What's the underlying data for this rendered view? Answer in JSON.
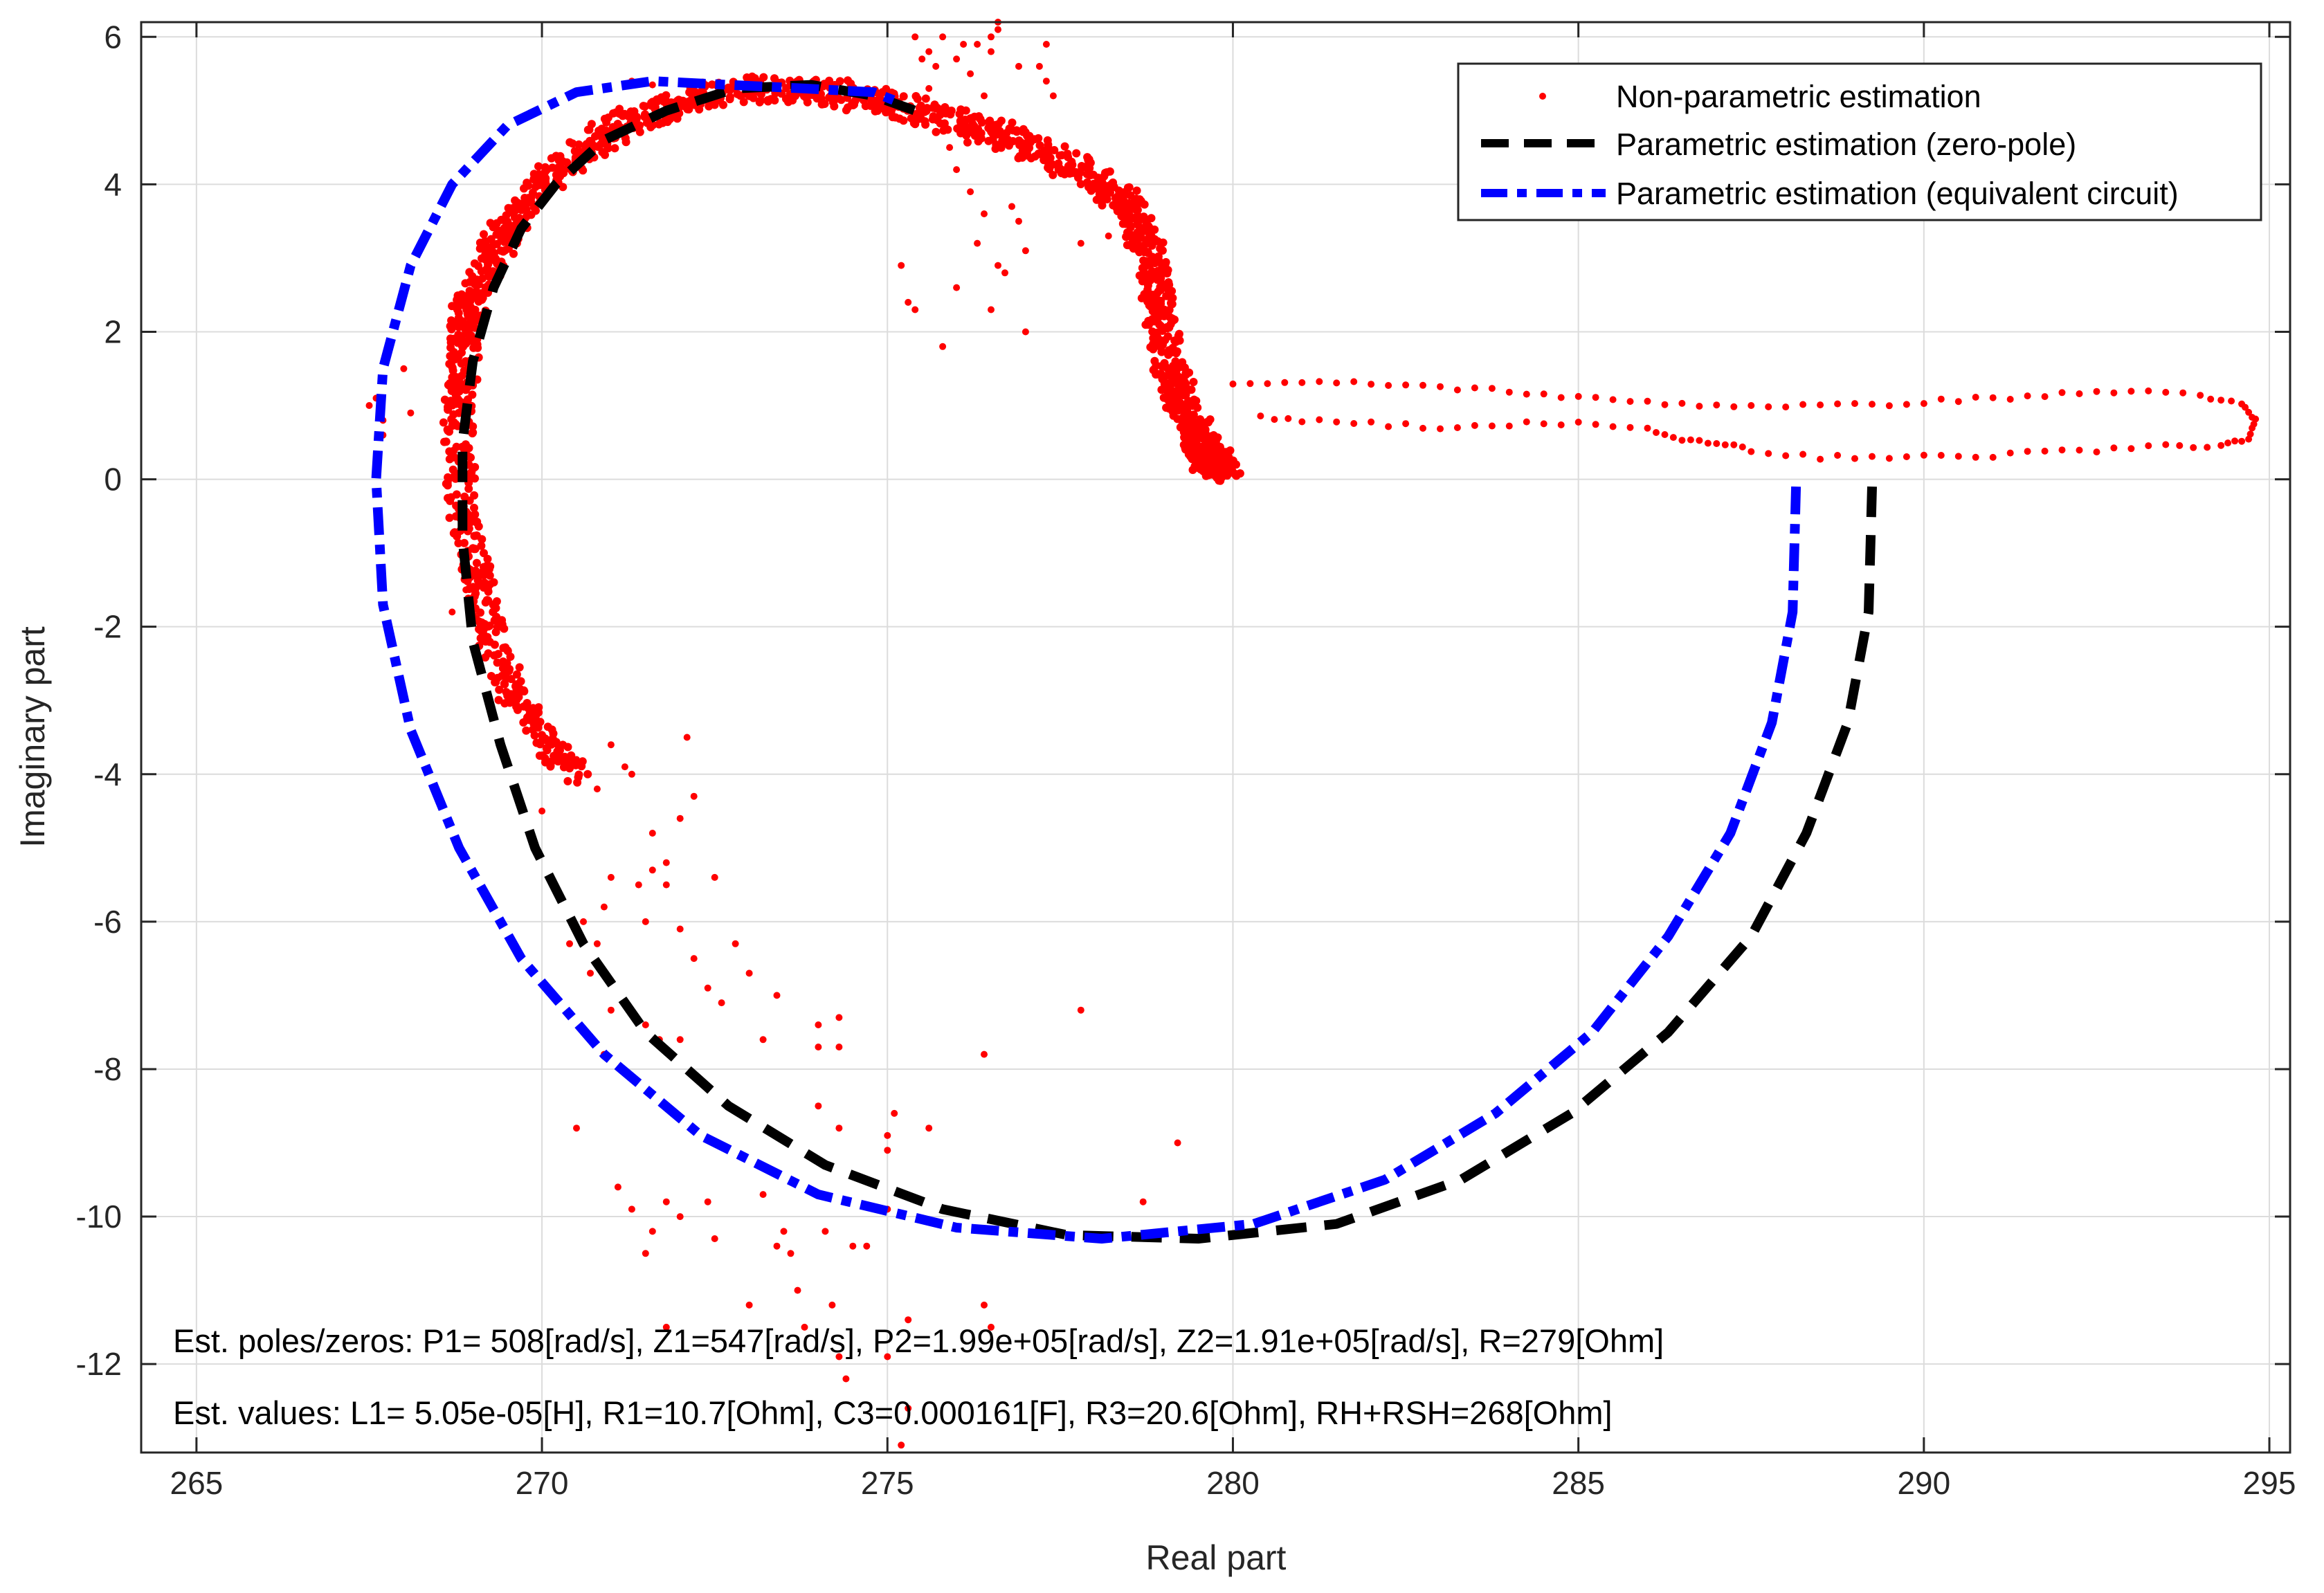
{
  "chart_data": {
    "type": "scatter",
    "title": "",
    "xlabel": "Real part",
    "ylabel": "Imaginary part",
    "xlim": [
      264.2,
      295.3
    ],
    "ylim": [
      -13.2,
      6.2
    ],
    "xticks": [
      265,
      270,
      275,
      280,
      285,
      290,
      295
    ],
    "yticks": [
      -12,
      -10,
      -8,
      -6,
      -4,
      -2,
      0,
      2,
      4,
      6
    ],
    "xtick_labels": [
      "265",
      "270",
      "275",
      "280",
      "285",
      "290",
      "295"
    ],
    "ytick_labels": [
      "-12",
      "-10",
      "-8",
      "-6",
      "-4",
      "-2",
      "0",
      "2",
      "4",
      "6"
    ],
    "grid": true,
    "legend_position": "top-right",
    "legend": [
      {
        "name": "Non-parametric estimation",
        "style": "dots",
        "color": "#ff0000"
      },
      {
        "name": "Parametric estimation (zero-pole)",
        "style": "dashed",
        "color": "#000000"
      },
      {
        "name": "Parametric estimation (equivalent circuit)",
        "style": "dash-dot",
        "color": "#0000ff"
      }
    ],
    "annotations": [
      "Est. poles/zeros: P1= 508[rad/s], Z1=547[rad/s], P2=1.99e+05[rad/s], Z2=1.91e+05[rad/s], R=279[Ohm]",
      "Est. values: L1= 5.05e-05[H], R1=10.7[Ohm], C3=0.000161[F], R3=20.6[Ohm], RH+RSH=268[Ohm]"
    ],
    "series": [
      {
        "name": "Non-parametric estimation",
        "color": "#ff0000",
        "dense_path": [
          [
            268.8,
            0.8
          ],
          [
            268.85,
            1.5
          ],
          [
            268.9,
            2.2
          ],
          [
            269.1,
            2.7
          ],
          [
            269.4,
            3.2
          ],
          [
            269.7,
            3.7
          ],
          [
            270.2,
            4.2
          ],
          [
            270.8,
            4.6
          ],
          [
            271.5,
            4.95
          ],
          [
            272.3,
            5.2
          ],
          [
            273.2,
            5.3
          ],
          [
            274.2,
            5.25
          ],
          [
            275.0,
            5.1
          ],
          [
            275.8,
            4.9
          ],
          [
            276.5,
            4.7
          ],
          [
            277.2,
            4.45
          ],
          [
            277.9,
            4.1
          ],
          [
            278.5,
            3.7
          ],
          [
            278.8,
            3.1
          ],
          [
            278.9,
            2.5
          ],
          [
            279.0,
            2.0
          ],
          [
            279.1,
            1.4
          ],
          [
            279.3,
            1.0
          ],
          [
            279.5,
            0.6
          ],
          [
            279.6,
            0.3
          ],
          [
            279.9,
            0.2
          ],
          [
            279.7,
            0.15
          ]
        ],
        "dense_path_lower": [
          [
            268.8,
            0.8
          ],
          [
            268.8,
            0.2
          ],
          [
            268.85,
            -0.4
          ],
          [
            269.0,
            -0.9
          ],
          [
            269.1,
            -1.4
          ],
          [
            269.2,
            -1.9
          ],
          [
            269.3,
            -2.4
          ],
          [
            269.6,
            -2.9
          ],
          [
            269.9,
            -3.3
          ],
          [
            270.2,
            -3.7
          ],
          [
            270.5,
            -4.0
          ]
        ],
        "tail": [
          [
            280.0,
            1.3
          ],
          [
            281.0,
            1.3
          ],
          [
            282.0,
            1.3
          ],
          [
            283.0,
            1.25
          ],
          [
            284.0,
            1.2
          ],
          [
            285.0,
            1.1
          ],
          [
            286.0,
            1.05
          ],
          [
            287.0,
            1.0
          ],
          [
            288.0,
            1.0
          ],
          [
            289.0,
            1.0
          ],
          [
            290.0,
            1.05
          ],
          [
            291.0,
            1.1
          ],
          [
            292.0,
            1.15
          ],
          [
            293.0,
            1.2
          ],
          [
            294.0,
            1.15
          ],
          [
            294.6,
            1.0
          ],
          [
            294.8,
            0.8
          ],
          [
            294.7,
            0.55
          ],
          [
            294.3,
            0.45
          ],
          [
            293.5,
            0.45
          ],
          [
            292.5,
            0.4
          ],
          [
            291.5,
            0.35
          ],
          [
            290.5,
            0.3
          ],
          [
            289.5,
            0.3
          ],
          [
            288.5,
            0.3
          ],
          [
            287.5,
            0.4
          ],
          [
            287.0,
            0.5
          ],
          [
            286.5,
            0.55
          ],
          [
            286.0,
            0.7
          ],
          [
            285.0,
            0.75
          ],
          [
            284.0,
            0.75
          ],
          [
            283.0,
            0.7
          ],
          [
            282.0,
            0.75
          ],
          [
            281.0,
            0.8
          ],
          [
            280.2,
            0.85
          ]
        ],
        "outliers": [
          [
            267.5,
            1.0
          ],
          [
            267.7,
            0.8
          ],
          [
            267.6,
            1.1
          ],
          [
            268.1,
            0.9
          ],
          [
            268.0,
            1.5
          ],
          [
            267.7,
            0.6
          ],
          [
            268.7,
            -1.8
          ],
          [
            268.9,
            -1.5
          ],
          [
            270.0,
            -4.5
          ],
          [
            270.5,
            -3.8
          ],
          [
            270.8,
            -4.2
          ],
          [
            271.0,
            -3.6
          ],
          [
            271.3,
            -4.0
          ],
          [
            271.2,
            -3.9
          ],
          [
            271.6,
            -4.8
          ],
          [
            271.6,
            -5.3
          ],
          [
            271.4,
            -5.5
          ],
          [
            271.0,
            -5.4
          ],
          [
            270.9,
            -5.8
          ],
          [
            270.6,
            -6.0
          ],
          [
            270.4,
            -6.3
          ],
          [
            270.8,
            -6.3
          ],
          [
            270.7,
            -6.7
          ],
          [
            271.5,
            -6.0
          ],
          [
            271.8,
            -5.2
          ],
          [
            271.8,
            -5.5
          ],
          [
            272.0,
            -4.6
          ],
          [
            272.1,
            -3.5
          ],
          [
            272.2,
            -4.3
          ],
          [
            272.0,
            -6.1
          ],
          [
            272.2,
            -6.5
          ],
          [
            272.4,
            -6.9
          ],
          [
            272.5,
            -5.4
          ],
          [
            272.8,
            -6.3
          ],
          [
            272.6,
            -7.1
          ],
          [
            271.0,
            -7.2
          ],
          [
            270.9,
            -7.8
          ],
          [
            271.5,
            -7.4
          ],
          [
            271.7,
            -7.6
          ],
          [
            272.0,
            -7.6
          ],
          [
            273.2,
            -7.6
          ],
          [
            273.0,
            -6.7
          ],
          [
            273.4,
            -7.0
          ],
          [
            274.0,
            -7.4
          ],
          [
            274.0,
            -7.7
          ],
          [
            274.3,
            -7.3
          ],
          [
            274.3,
            -7.7
          ],
          [
            274.0,
            -8.5
          ],
          [
            274.3,
            -8.8
          ],
          [
            275.0,
            -8.9
          ],
          [
            275.0,
            -9.1
          ],
          [
            275.6,
            -8.8
          ],
          [
            275.1,
            -8.6
          ],
          [
            276.4,
            -7.8
          ],
          [
            277.8,
            -7.2
          ],
          [
            279.2,
            -9.0
          ],
          [
            278.7,
            -9.8
          ],
          [
            270.5,
            -8.8
          ],
          [
            271.1,
            -9.6
          ],
          [
            271.3,
            -9.9
          ],
          [
            271.6,
            -10.2
          ],
          [
            271.8,
            -9.8
          ],
          [
            271.5,
            -10.5
          ],
          [
            272.0,
            -10.0
          ],
          [
            272.4,
            -9.8
          ],
          [
            272.5,
            -10.3
          ],
          [
            273.2,
            -9.7
          ],
          [
            273.4,
            -10.4
          ],
          [
            273.5,
            -10.2
          ],
          [
            273.6,
            -10.5
          ],
          [
            274.1,
            -10.2
          ],
          [
            273.7,
            -11.0
          ],
          [
            273.8,
            -11.5
          ],
          [
            274.2,
            -11.2
          ],
          [
            274.5,
            -10.4
          ],
          [
            274.7,
            -10.4
          ],
          [
            274.3,
            -11.9
          ],
          [
            274.4,
            -12.2
          ],
          [
            275.0,
            -9.9
          ],
          [
            275.3,
            -12.6
          ],
          [
            275.3,
            -11.4
          ],
          [
            271.8,
            -11.5
          ],
          [
            273.0,
            -11.2
          ],
          [
            276.4,
            -11.2
          ],
          [
            276.5,
            -11.5
          ],
          [
            275.0,
            -11.9
          ],
          [
            275.2,
            -13.1
          ],
          [
            275.2,
            2.9
          ],
          [
            275.3,
            2.4
          ],
          [
            275.4,
            2.3
          ],
          [
            275.8,
            1.8
          ],
          [
            276.0,
            2.6
          ],
          [
            276.3,
            3.2
          ],
          [
            276.4,
            3.6
          ],
          [
            276.5,
            2.3
          ],
          [
            276.6,
            2.9
          ],
          [
            276.7,
            2.8
          ],
          [
            277.0,
            2.0
          ],
          [
            276.3,
            5.9
          ],
          [
            276.5,
            6.0
          ],
          [
            276.6,
            6.1
          ],
          [
            276.2,
            5.5
          ],
          [
            275.7,
            5.6
          ],
          [
            276.9,
            5.6
          ],
          [
            276.5,
            5.8
          ],
          [
            277.3,
            5.4
          ],
          [
            277.2,
            5.6
          ],
          [
            277.4,
            5.2
          ],
          [
            277.3,
            5.9
          ],
          [
            275.9,
            4.5
          ],
          [
            276.0,
            4.2
          ],
          [
            276.2,
            3.9
          ],
          [
            276.8,
            3.7
          ],
          [
            276.9,
            3.5
          ],
          [
            277.0,
            3.1
          ],
          [
            277.8,
            3.2
          ],
          [
            278.2,
            3.3
          ],
          [
            275.6,
            5.3
          ],
          [
            275.5,
            5.7
          ],
          [
            275.6,
            5.8
          ],
          [
            275.4,
            6.0
          ],
          [
            275.8,
            6.0
          ],
          [
            276.0,
            5.7
          ],
          [
            276.4,
            5.2
          ],
          [
            276.1,
            5.9
          ],
          [
            276.6,
            6.2
          ],
          [
            271.3,
            5.4
          ],
          [
            271.6,
            5.35
          ]
        ]
      },
      {
        "name": "Parametric estimation (zero-pole)",
        "color": "#000000",
        "path": [
          [
            289.25,
            -0.1
          ],
          [
            289.2,
            -1.8
          ],
          [
            288.9,
            -3.3
          ],
          [
            288.3,
            -4.8
          ],
          [
            287.5,
            -6.2
          ],
          [
            286.3,
            -7.5
          ],
          [
            284.9,
            -8.6
          ],
          [
            283.3,
            -9.5
          ],
          [
            281.5,
            -10.1
          ],
          [
            279.5,
            -10.3
          ],
          [
            277.6,
            -10.25
          ],
          [
            275.8,
            -9.9
          ],
          [
            274.1,
            -9.3
          ],
          [
            272.7,
            -8.5
          ],
          [
            271.5,
            -7.5
          ],
          [
            270.6,
            -6.3
          ],
          [
            269.9,
            -5.0
          ],
          [
            269.4,
            -3.6
          ],
          [
            269.0,
            -2.2
          ],
          [
            268.85,
            -0.8
          ],
          [
            268.85,
            0.5
          ],
          [
            269.0,
            1.6
          ],
          [
            269.3,
            2.6
          ],
          [
            269.7,
            3.4
          ],
          [
            270.2,
            4.0
          ],
          [
            270.9,
            4.6
          ],
          [
            271.8,
            5.0
          ],
          [
            272.8,
            5.3
          ],
          [
            273.9,
            5.35
          ],
          [
            274.8,
            5.2
          ],
          [
            275.4,
            5.0
          ]
        ]
      },
      {
        "name": "Parametric estimation (equivalent circuit)",
        "color": "#0000ff",
        "path": [
          [
            288.15,
            -0.1
          ],
          [
            288.1,
            -1.8
          ],
          [
            287.8,
            -3.3
          ],
          [
            287.2,
            -4.8
          ],
          [
            286.3,
            -6.2
          ],
          [
            285.2,
            -7.5
          ],
          [
            283.8,
            -8.6
          ],
          [
            282.2,
            -9.5
          ],
          [
            280.3,
            -10.1
          ],
          [
            278.1,
            -10.3
          ],
          [
            276.0,
            -10.15
          ],
          [
            274.0,
            -9.7
          ],
          [
            272.3,
            -8.9
          ],
          [
            270.9,
            -7.8
          ],
          [
            269.7,
            -6.5
          ],
          [
            268.8,
            -5.0
          ],
          [
            268.1,
            -3.4
          ],
          [
            267.7,
            -1.7
          ],
          [
            267.6,
            0.0
          ],
          [
            267.7,
            1.5
          ],
          [
            268.1,
            2.9
          ],
          [
            268.7,
            4.0
          ],
          [
            269.5,
            4.8
          ],
          [
            270.5,
            5.25
          ],
          [
            271.6,
            5.4
          ],
          [
            272.7,
            5.35
          ],
          [
            273.8,
            5.3
          ],
          [
            274.8,
            5.25
          ],
          [
            275.2,
            5.1
          ]
        ]
      }
    ]
  },
  "legend_marker_color": "#ff0000"
}
